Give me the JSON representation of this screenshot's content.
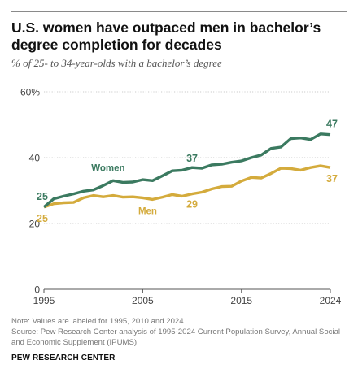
{
  "header": {
    "title": "U.S. women have outpaced men in bachelor’s degree completion for decades",
    "subtitle": "% of 25- to 34-year-olds with a bachelor’s degree"
  },
  "footer": {
    "note": "Note: Values are labeled for 1995, 2010 and 2024.",
    "source": "Source: Pew Research Center analysis of 1995-2024 Current Population Survey, Annual Social and Economic Supplement (IPUMS).",
    "brand": "PEW RESEARCH CENTER"
  },
  "chart_data": {
    "type": "line",
    "x": [
      1995,
      1996,
      1997,
      1998,
      1999,
      2000,
      2001,
      2002,
      2003,
      2004,
      2005,
      2006,
      2007,
      2008,
      2009,
      2010,
      2011,
      2012,
      2013,
      2014,
      2015,
      2016,
      2017,
      2018,
      2019,
      2020,
      2021,
      2022,
      2023,
      2024
    ],
    "xticks": [
      1995,
      2005,
      2015,
      2024
    ],
    "yticks": [
      0,
      20,
      40,
      60
    ],
    "ytick_labels": [
      "0",
      "20",
      "40",
      "60%"
    ],
    "ylim": [
      0,
      60
    ],
    "grid": true,
    "series": [
      {
        "name": "Women",
        "color": "#3b7a60",
        "values": [
          25.0,
          27.5,
          28.3,
          29.0,
          29.8,
          30.2,
          31.5,
          33.0,
          32.5,
          32.6,
          33.3,
          33.0,
          34.5,
          36.0,
          36.2,
          37.0,
          36.8,
          37.8,
          38.0,
          38.6,
          39.0,
          40.0,
          40.8,
          42.8,
          43.2,
          45.8,
          46.0,
          45.5,
          47.2,
          47.0
        ],
        "labels": [
          {
            "x": 1995,
            "text": "25"
          },
          {
            "x": 2010,
            "text": "37"
          },
          {
            "x": 2024,
            "text": "47"
          }
        ]
      },
      {
        "name": "Men",
        "color": "#d4ab3c",
        "values": [
          25.0,
          26.0,
          26.3,
          26.4,
          27.8,
          28.5,
          28.1,
          28.5,
          28.0,
          28.1,
          27.8,
          27.3,
          28.0,
          28.8,
          28.3,
          29.0,
          29.5,
          30.5,
          31.2,
          31.3,
          32.9,
          34.0,
          33.8,
          35.2,
          36.8,
          36.7,
          36.2,
          37.0,
          37.5,
          37.0
        ],
        "labels": [
          {
            "x": 1995,
            "text": "25"
          },
          {
            "x": 2010,
            "text": "29"
          },
          {
            "x": 2024,
            "text": "37"
          }
        ]
      }
    ]
  }
}
